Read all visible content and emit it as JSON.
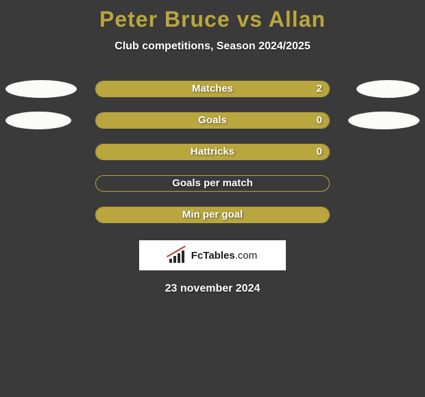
{
  "colors": {
    "bg": "#3a3a3a",
    "title": "#b9a63e",
    "white": "#ffffff",
    "barBorder": "#b9a63e",
    "barFill": "#b9a63e",
    "ellipseLight": "#fbfbf8",
    "logoBg": "#ffffff",
    "logoText": "#1a1a1a",
    "logoBar": "#2a2a2a",
    "logoLine": "#c0392b"
  },
  "header": {
    "title": "Peter Bruce vs Allan",
    "subtitle": "Club competitions, Season 2024/2025"
  },
  "rows": [
    {
      "label": "Matches",
      "leftVal": "",
      "rightVal": "2",
      "leftFillPct": 0,
      "rightFillPct": 100,
      "leftEllipseW": 104,
      "leftEllipseColor": "#fbfbf8",
      "rightEllipseW": 92,
      "rightEllipseColor": "#fbfbf8"
    },
    {
      "label": "Goals",
      "leftVal": "",
      "rightVal": "0",
      "leftFillPct": 0,
      "rightFillPct": 100,
      "leftEllipseW": 96,
      "leftEllipseColor": "#fbfbf8",
      "rightEllipseW": 104,
      "rightEllipseColor": "#fbfbf8"
    },
    {
      "label": "Hattricks",
      "leftVal": "",
      "rightVal": "0",
      "leftFillPct": 0,
      "rightFillPct": 100,
      "leftEllipseW": 0,
      "leftEllipseColor": "#fbfbf8",
      "rightEllipseW": 0,
      "rightEllipseColor": "#fbfbf8"
    },
    {
      "label": "Goals per match",
      "leftVal": "",
      "rightVal": "",
      "leftFillPct": 0,
      "rightFillPct": 0,
      "leftEllipseW": 0,
      "leftEllipseColor": "#fbfbf8",
      "rightEllipseW": 0,
      "rightEllipseColor": "#fbfbf8"
    },
    {
      "label": "Min per goal",
      "leftVal": "",
      "rightVal": "",
      "leftFillPct": 0,
      "rightFillPct": 100,
      "leftEllipseW": 0,
      "leftEllipseColor": "#fbfbf8",
      "rightEllipseW": 0,
      "rightEllipseColor": "#fbfbf8"
    }
  ],
  "logo": {
    "textBold": "FcTables",
    "textThin": ".com",
    "bars": [
      {
        "x": 2,
        "h": 6
      },
      {
        "x": 8,
        "h": 10
      },
      {
        "x": 14,
        "h": 14
      },
      {
        "x": 20,
        "h": 18
      }
    ],
    "lineRotate": -30
  },
  "footer": {
    "date": "23 november 2024"
  }
}
